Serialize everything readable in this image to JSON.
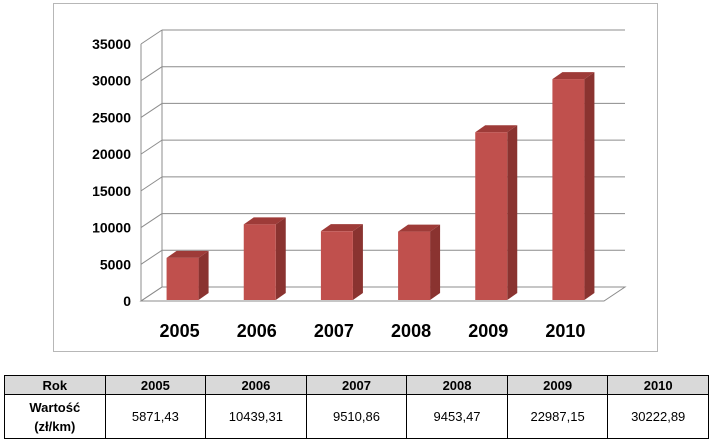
{
  "chart_data": {
    "type": "bar",
    "style": "3d-column",
    "categories": [
      "2005",
      "2006",
      "2007",
      "2008",
      "2009",
      "2010"
    ],
    "values": [
      5871.43,
      10439.31,
      9510.86,
      9453.47,
      22987.15,
      30222.89
    ],
    "yticks": [
      "0",
      "5000",
      "10000",
      "15000",
      "20000",
      "25000",
      "30000",
      "35000"
    ],
    "ylim": [
      0,
      35000
    ],
    "grid": true,
    "legend": "none",
    "bar_color": "#c0504d"
  },
  "table": {
    "header_label": "Rok",
    "years": [
      "2005",
      "2006",
      "2007",
      "2008",
      "2009",
      "2010"
    ],
    "row_label_line1": "Wartość",
    "row_label_line2": "(zł/km)",
    "values": [
      "5871,43",
      "10439,31",
      "9510,86",
      "9453,47",
      "22987,15",
      "30222,89"
    ]
  }
}
